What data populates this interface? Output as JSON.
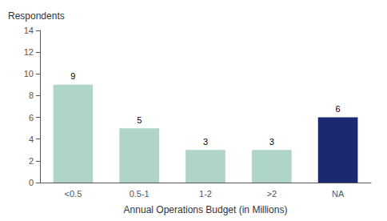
{
  "chart_data": {
    "type": "bar",
    "ylabel": "Respondents",
    "xlabel": "Annual Operations Budget (in Millions)",
    "categories": [
      "<0.5",
      "0.5-1",
      "1-2",
      ">2",
      "NA"
    ],
    "values": [
      9,
      5,
      3,
      3,
      6
    ],
    "colors": [
      "#afd4c8",
      "#afd4c8",
      "#afd4c8",
      "#afd4c8",
      "#1a2970"
    ],
    "ylim": [
      0,
      14
    ],
    "yticks": [
      0,
      2,
      4,
      6,
      8,
      10,
      12,
      14
    ],
    "data_labels": true,
    "grid": false
  }
}
